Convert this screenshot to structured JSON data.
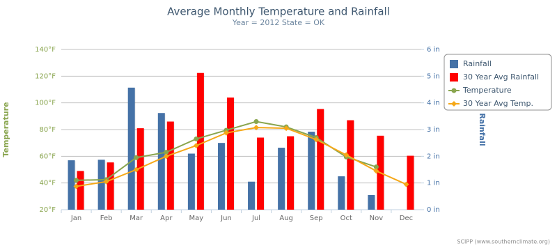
{
  "chart_data": {
    "type": "combo",
    "title": "Average Monthly Temperature and Rainfall",
    "subtitle": "Year = 2012 State = OK",
    "y_label": "Temperature",
    "y2_label": "Rainfall",
    "credits": "SCIPP (www.southernclimate.org)",
    "categories": [
      "Jan",
      "Feb",
      "Mar",
      "Apr",
      "May",
      "Jun",
      "Jul",
      "Aug",
      "Sep",
      "Oct",
      "Nov",
      "Dec"
    ],
    "ylim": [
      20,
      140
    ],
    "yticks": [
      {
        "value": 20,
        "label": "20°F"
      },
      {
        "value": 40,
        "label": "40°F"
      },
      {
        "value": 60,
        "label": "60°F"
      },
      {
        "value": 80,
        "label": "80°F"
      },
      {
        "value": 100,
        "label": "100°F"
      },
      {
        "value": 120,
        "label": "120°F"
      },
      {
        "value": 140,
        "label": "140°F"
      }
    ],
    "y2lim": [
      0,
      6
    ],
    "y2ticks": [
      {
        "value": 0,
        "label": "0 in"
      },
      {
        "value": 1,
        "label": "1 in"
      },
      {
        "value": 2,
        "label": "2 in"
      },
      {
        "value": 3,
        "label": "3 in"
      },
      {
        "value": 4,
        "label": "4 in"
      },
      {
        "value": 5,
        "label": "5 in"
      },
      {
        "value": 6,
        "label": "6 in"
      }
    ],
    "grid": true,
    "legend": "right",
    "series": [
      {
        "name": "Rainfall",
        "type": "bar",
        "axis": "y2",
        "color": "#4572a7",
        "values": [
          1.85,
          1.87,
          4.57,
          3.62,
          2.1,
          2.5,
          1.05,
          2.32,
          2.92,
          1.25,
          0.55,
          null
        ]
      },
      {
        "name": "30 Year Avg Rainfall",
        "type": "bar",
        "axis": "y2",
        "color": "#ff0000",
        "values": [
          1.45,
          1.77,
          3.05,
          3.3,
          5.12,
          4.2,
          2.7,
          2.75,
          3.77,
          3.35,
          2.77,
          2.02
        ]
      },
      {
        "name": "Temperature",
        "type": "line",
        "marker": "circle",
        "color": "#89a54e",
        "values": [
          42,
          42.5,
          59,
          63,
          73,
          79.5,
          86,
          82,
          74,
          59.5,
          52,
          null
        ]
      },
      {
        "name": "30 Year Avg Temp.",
        "type": "line",
        "marker": "diamond",
        "color": "#f5a818",
        "values": [
          37.5,
          41,
          50,
          60,
          68,
          77.5,
          81.5,
          81,
          72.5,
          61,
          49,
          39
        ]
      }
    ]
  }
}
